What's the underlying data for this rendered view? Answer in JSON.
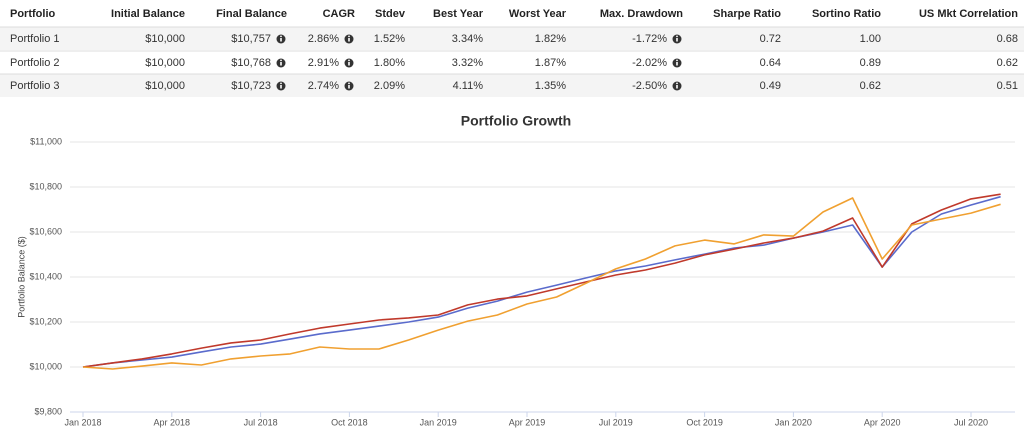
{
  "table": {
    "header": [
      "Portfolio",
      "Initial Balance",
      "Final Balance",
      "CAGR",
      "Stdev",
      "Best Year",
      "Worst Year",
      "Max. Drawdown",
      "Sharpe Ratio",
      "Sortino Ratio",
      "US Mkt Correlation"
    ],
    "rows": [
      [
        "Portfolio 1",
        "$10,000",
        "$10,757",
        "2.86%",
        "1.52%",
        "3.34%",
        "1.82%",
        "-1.72%",
        "0.72",
        "1.00",
        "0.68"
      ],
      [
        "Portfolio 2",
        "$10,000",
        "$10,768",
        "2.91%",
        "1.80%",
        "3.32%",
        "1.87%",
        "-2.02%",
        "0.64",
        "0.89",
        "0.62"
      ],
      [
        "Portfolio 3",
        "$10,000",
        "$10,723",
        "2.74%",
        "2.09%",
        "4.11%",
        "1.35%",
        "-2.50%",
        "0.49",
        "0.62",
        "0.51"
      ]
    ]
  },
  "chart_data": {
    "type": "line",
    "title": "Portfolio Growth",
    "y_label": "Portfolio Balance ($)",
    "categories": [
      "Jan 2018",
      null,
      null,
      "Apr 2018",
      null,
      null,
      "Jul 2018",
      null,
      null,
      "Oct 2018",
      null,
      null,
      "Jan 2019",
      null,
      null,
      "Apr 2019",
      null,
      null,
      "Jul 2019",
      null,
      null,
      "Oct 2019",
      null,
      null,
      "Jan 2020",
      null,
      null,
      "Apr 2020",
      null,
      null,
      "Jul 2020",
      null
    ],
    "series": [
      {
        "color": "#5a6bcc",
        "values": [
          10000,
          10018,
          10031,
          10044,
          10067,
          10089,
          10102,
          10124,
          10147,
          10164,
          10182,
          10200,
          10222,
          10262,
          10293,
          10333,
          10364,
          10396,
          10427,
          10449,
          10476,
          10502,
          10529,
          10542,
          10573,
          10600,
          10631,
          10444,
          10600,
          10680,
          10720,
          10757
        ]
      },
      {
        "color": "#c0392b",
        "values": [
          10000,
          10018,
          10036,
          10058,
          10084,
          10107,
          10120,
          10147,
          10173,
          10191,
          10209,
          10218,
          10231,
          10276,
          10302,
          10316,
          10347,
          10378,
          10409,
          10431,
          10462,
          10498,
          10524,
          10551,
          10573,
          10604,
          10662,
          10444,
          10636,
          10698,
          10747,
          10768
        ]
      },
      {
        "color": "#f0a030",
        "values": [
          10000,
          9991,
          10004,
          10018,
          10009,
          10036,
          10049,
          10058,
          10089,
          10080,
          10080,
          10120,
          10164,
          10204,
          10231,
          10280,
          10311,
          10373,
          10436,
          10480,
          10538,
          10564,
          10547,
          10587,
          10582,
          10689,
          10751,
          10480,
          10631,
          10658,
          10684,
          10723
        ]
      }
    ],
    "ylim": [
      9800,
      11000
    ],
    "yticks": [
      {
        "value": 9800,
        "label": "$9,800"
      },
      {
        "value": 10000,
        "label": "$10,000"
      },
      {
        "value": 10200,
        "label": "$10,200"
      },
      {
        "value": 10400,
        "label": "$10,400"
      },
      {
        "value": 10600,
        "label": "$10,600"
      },
      {
        "value": 10800,
        "label": "$10,800"
      },
      {
        "value": 11000,
        "label": "$11,000"
      }
    ],
    "grid": true
  }
}
